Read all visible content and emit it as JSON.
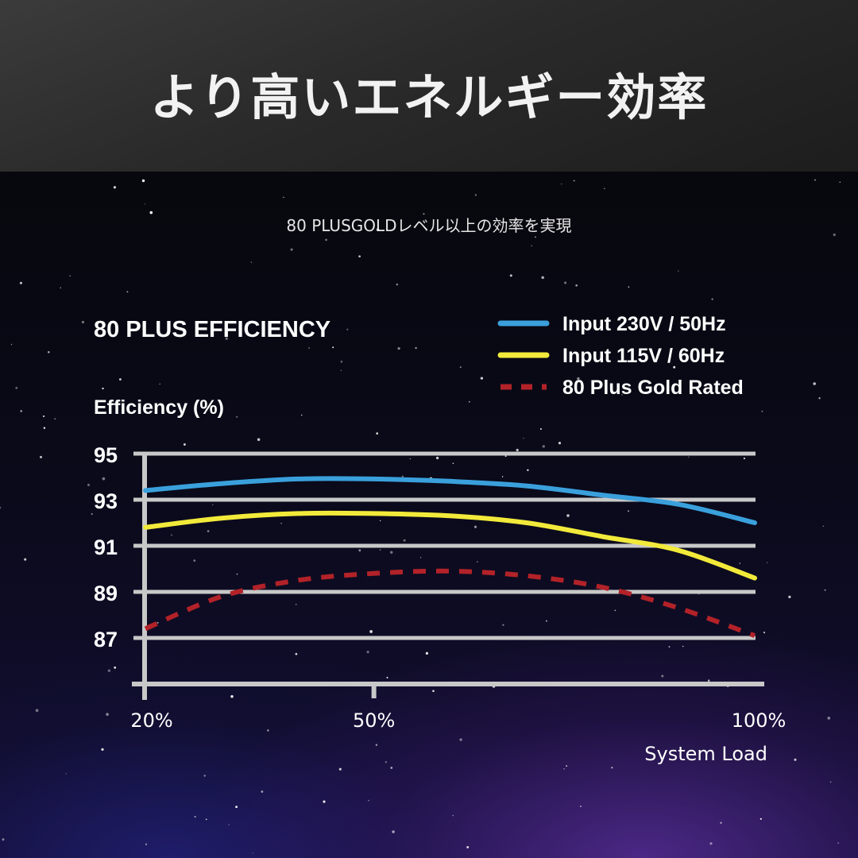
{
  "header": {
    "title": "より高いエネルギー効率"
  },
  "subtitle": "80 PLUSGOLDレベル以上の効率を実現",
  "colors": {
    "background": "#07070f",
    "header_bg": "#2a2a2a",
    "grid": "#c8c8c8",
    "series_230v": "#3aa0dc",
    "series_115v": "#f2ea3a",
    "series_gold": "#b22228"
  },
  "chart_data": {
    "type": "line",
    "title": "80 PLUS EFFICIENCY",
    "ylabel": "Efficiency (%)",
    "xlabel": "System Load",
    "x_unit": "%",
    "xlim": [
      20,
      100
    ],
    "ylim": [
      85,
      95
    ],
    "yticks": [
      95,
      93,
      91,
      89,
      87
    ],
    "xticks": [
      "20%",
      "50%",
      "100%"
    ],
    "grid": true,
    "legend_position": "top-right",
    "series": [
      {
        "name": "Input 230V / 50Hz",
        "style": "solid",
        "x": [
          20,
          30,
          40,
          50,
          60,
          70,
          80,
          90,
          100
        ],
        "y": [
          93.4,
          93.7,
          93.9,
          93.9,
          93.8,
          93.6,
          93.2,
          92.8,
          92.0
        ]
      },
      {
        "name": "Input 115V / 60Hz",
        "style": "solid",
        "x": [
          20,
          30,
          40,
          50,
          60,
          70,
          80,
          90,
          100
        ],
        "y": [
          91.8,
          92.2,
          92.4,
          92.4,
          92.3,
          92.0,
          91.4,
          90.8,
          89.6
        ]
      },
      {
        "name": "80 Plus Gold Rated",
        "style": "dashed",
        "x": [
          20,
          30,
          40,
          50,
          60,
          70,
          80,
          90,
          100
        ],
        "y": [
          87.4,
          88.8,
          89.5,
          89.8,
          89.9,
          89.7,
          89.2,
          88.3,
          87.1
        ]
      }
    ]
  }
}
